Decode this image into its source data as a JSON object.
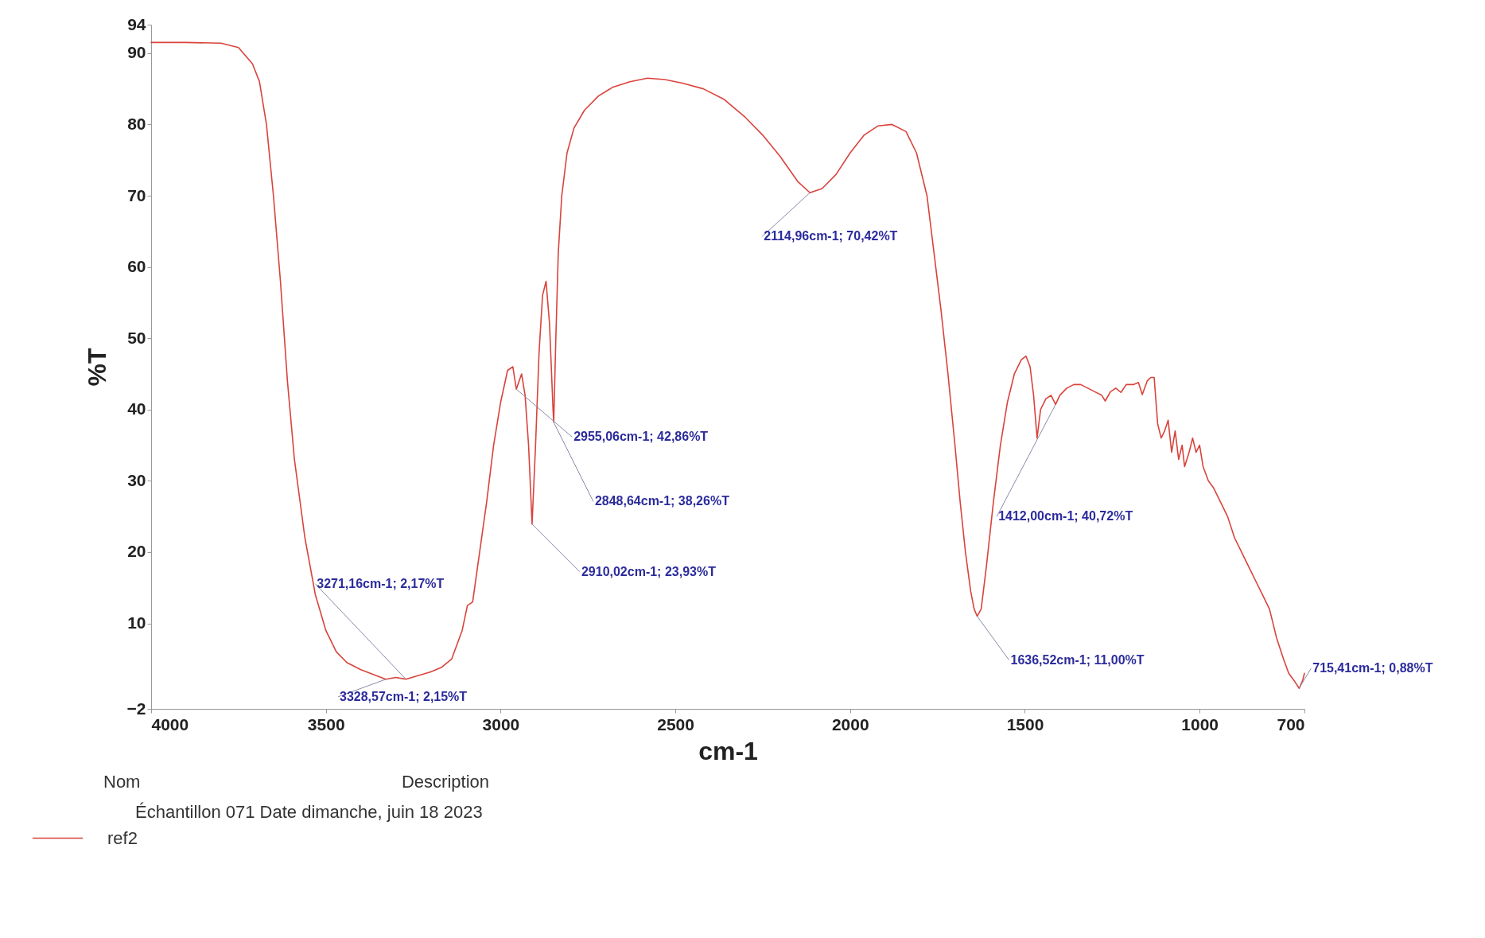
{
  "chart_data": {
    "type": "line",
    "xlabel": "cm-1",
    "ylabel": "%T",
    "xlim": [
      4000,
      700
    ],
    "xticks": [
      4000,
      3500,
      3000,
      2500,
      2000,
      1500,
      1000,
      700
    ],
    "ylim": [
      -2,
      94
    ],
    "yticks": [
      -2,
      10,
      20,
      30,
      40,
      50,
      60,
      70,
      80,
      90,
      94
    ],
    "grid": false,
    "legend": "bottom left",
    "marker": "none",
    "line_style": "solid",
    "series": [
      {
        "name": "ref2",
        "color": "#d9433c",
        "x": [
          4000,
          3900,
          3800,
          3750,
          3710,
          3690,
          3670,
          3650,
          3630,
          3610,
          3590,
          3560,
          3530,
          3500,
          3470,
          3440,
          3400,
          3328.57,
          3300,
          3271.16,
          3200,
          3170,
          3140,
          3110,
          3095,
          3080,
          3060,
          3040,
          3020,
          3000,
          2980,
          2965,
          2955.06,
          2940,
          2930,
          2920,
          2910,
          2900,
          2890,
          2880,
          2870,
          2860,
          2850,
          2848,
          2842,
          2835,
          2825,
          2810,
          2790,
          2760,
          2720,
          2680,
          2630,
          2580,
          2530,
          2480,
          2420,
          2360,
          2300,
          2250,
          2200,
          2150,
          2115,
          2080,
          2040,
          2000,
          1960,
          1920,
          1880,
          1840,
          1810,
          1780,
          1760,
          1740,
          1720,
          1700,
          1685,
          1670,
          1655,
          1645,
          1636.52,
          1625,
          1610,
          1590,
          1570,
          1550,
          1530,
          1510,
          1497,
          1485,
          1475,
          1465,
          1455,
          1440,
          1425,
          1412,
          1400,
          1380,
          1360,
          1340,
          1320,
          1300,
          1280,
          1270,
          1255,
          1240,
          1225,
          1210,
          1190,
          1175,
          1164,
          1150,
          1140,
          1130,
          1120,
          1110,
          1100,
          1090,
          1080,
          1070,
          1060,
          1050,
          1043,
          1030,
          1020,
          1010,
          1000,
          990,
          975,
          960,
          940,
          920,
          900,
          880,
          860,
          840,
          820,
          800,
          780,
          760,
          745,
          730,
          715,
          705,
          700
        ],
        "values": [
          91.5,
          91.5,
          91.4,
          90.8,
          88.5,
          86,
          80,
          70,
          58,
          44,
          33,
          22,
          14,
          9,
          6,
          4.5,
          3.5,
          2.15,
          2.4,
          2.17,
          3.2,
          3.8,
          5,
          9,
          12.5,
          13,
          20,
          27,
          35,
          41,
          45.5,
          46,
          42.86,
          45,
          42,
          35,
          23.93,
          35,
          48,
          56,
          58,
          52,
          40,
          38.26,
          50,
          62,
          70,
          76,
          79.5,
          82,
          84,
          85.2,
          86,
          86.5,
          86.3,
          85.8,
          85,
          83.5,
          81,
          78.5,
          75.5,
          72,
          70.42,
          71,
          73,
          76,
          78.5,
          79.8,
          80,
          79,
          76,
          70,
          62,
          54,
          45,
          35,
          27,
          20,
          14.5,
          12,
          11,
          12,
          18,
          27,
          35,
          41,
          45,
          47,
          47.5,
          46,
          42,
          36,
          40,
          41.5,
          42,
          40.72,
          42,
          43,
          43.5,
          43.5,
          43,
          42.5,
          42,
          41.2,
          42.5,
          43,
          42.4,
          43.5,
          43.5,
          43.8,
          42.1,
          44,
          44.5,
          44.5,
          38,
          36,
          37,
          38.5,
          34,
          37,
          33,
          35,
          32,
          34,
          36,
          34,
          35,
          32,
          30,
          29,
          27,
          25,
          22,
          20,
          18,
          16,
          14,
          12,
          8,
          5,
          3,
          2,
          0.88,
          2,
          3
        ]
      }
    ],
    "annotations": [
      {
        "text": "2114,96cm-1; 70,42%T",
        "x": 2114.96,
        "y": 70.42
      },
      {
        "text": "2955,06cm-1; 42,86%T",
        "x": 2955.06,
        "y": 42.86
      },
      {
        "text": "2848,64cm-1; 38,26%T",
        "x": 2848.64,
        "y": 38.26
      },
      {
        "text": "2910,02cm-1; 23,93%T",
        "x": 2910.02,
        "y": 23.93
      },
      {
        "text": "3271,16cm-1; 2,17%T",
        "x": 3271.16,
        "y": 2.17
      },
      {
        "text": "3328,57cm-1; 2,15%T",
        "x": 3328.57,
        "y": 2.15
      },
      {
        "text": "1636,52cm-1; 11,00%T",
        "x": 1636.52,
        "y": 11.0
      },
      {
        "text": "1412,00cm-1; 40,72%T",
        "x": 1412.0,
        "y": 40.72
      },
      {
        "text": "715,41cm-1; 0,88%T",
        "x": 715.41,
        "y": 0.88
      },
      "Nom",
      "Description",
      "Échantillon 071 Date dimanche, juin 18 2023"
    ]
  }
}
